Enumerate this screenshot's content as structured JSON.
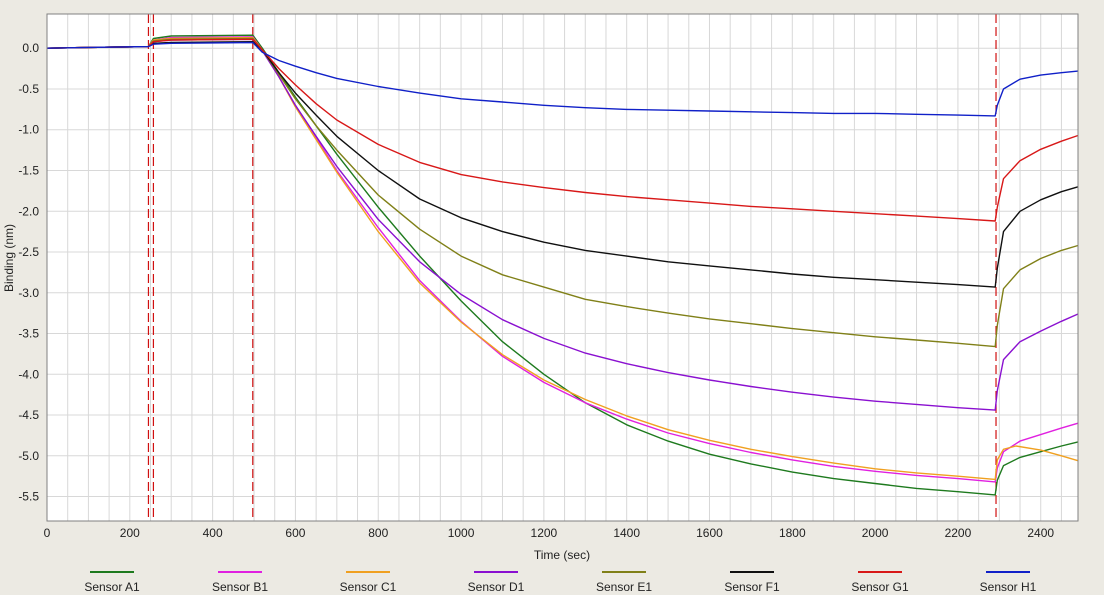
{
  "chart_data": {
    "type": "line",
    "title": "",
    "xlabel": "Time (sec)",
    "ylabel": "Binding (nm)",
    "xlim": [
      0,
      2490
    ],
    "ylim": [
      -5.8,
      0.42
    ],
    "x_ticks": [
      0,
      200,
      400,
      600,
      800,
      1000,
      1200,
      1400,
      1600,
      1800,
      2000,
      2200,
      2400
    ],
    "y_ticks": [
      0.0,
      -0.5,
      -1.0,
      -1.5,
      -2.0,
      -2.5,
      -3.0,
      -3.5,
      -4.0,
      -4.5,
      -5.0,
      -5.5
    ],
    "x_tick_labels": [
      "0",
      "200",
      "400",
      "600",
      "800",
      "1000",
      "1200",
      "1400",
      "1600",
      "1800",
      "2000",
      "2200",
      "2400"
    ],
    "y_tick_labels": [
      "0.0",
      "-0.5",
      "-1.0",
      "-1.5",
      "-2.0",
      "-2.5",
      "-3.0",
      "-3.5",
      "-4.0",
      "-4.5",
      "-5.0",
      "-5.5"
    ],
    "grid": true,
    "legend_position": "bottom",
    "step_markers": [
      245,
      257,
      497,
      2292
    ],
    "step_marker_color": "#D01010",
    "series": [
      {
        "name": "Sensor A1",
        "color": "#1E7A1E",
        "points": [
          [
            0,
            0
          ],
          [
            100,
            0.01
          ],
          [
            245,
            0.02
          ],
          [
            257,
            0.12
          ],
          [
            300,
            0.15
          ],
          [
            497,
            0.16
          ],
          [
            520,
            0.0
          ],
          [
            560,
            -0.3
          ],
          [
            600,
            -0.6
          ],
          [
            650,
            -0.95
          ],
          [
            700,
            -1.3
          ],
          [
            800,
            -1.95
          ],
          [
            900,
            -2.55
          ],
          [
            1000,
            -3.1
          ],
          [
            1100,
            -3.6
          ],
          [
            1200,
            -4.0
          ],
          [
            1300,
            -4.35
          ],
          [
            1400,
            -4.62
          ],
          [
            1500,
            -4.82
          ],
          [
            1600,
            -4.98
          ],
          [
            1700,
            -5.1
          ],
          [
            1800,
            -5.2
          ],
          [
            1900,
            -5.28
          ],
          [
            2000,
            -5.34
          ],
          [
            2100,
            -5.4
          ],
          [
            2200,
            -5.44
          ],
          [
            2290,
            -5.48
          ],
          [
            2295,
            -5.3
          ],
          [
            2310,
            -5.12
          ],
          [
            2350,
            -5.02
          ],
          [
            2400,
            -4.95
          ],
          [
            2450,
            -4.88
          ],
          [
            2490,
            -4.83
          ]
        ]
      },
      {
        "name": "Sensor B1",
        "color": "#E020E0",
        "points": [
          [
            0,
            0
          ],
          [
            100,
            0.01
          ],
          [
            245,
            0.02
          ],
          [
            257,
            0.1
          ],
          [
            300,
            0.13
          ],
          [
            497,
            0.14
          ],
          [
            520,
            -0.02
          ],
          [
            560,
            -0.35
          ],
          [
            600,
            -0.7
          ],
          [
            650,
            -1.1
          ],
          [
            700,
            -1.5
          ],
          [
            800,
            -2.2
          ],
          [
            900,
            -2.85
          ],
          [
            1000,
            -3.35
          ],
          [
            1100,
            -3.78
          ],
          [
            1200,
            -4.1
          ],
          [
            1300,
            -4.35
          ],
          [
            1400,
            -4.55
          ],
          [
            1500,
            -4.72
          ],
          [
            1600,
            -4.85
          ],
          [
            1700,
            -4.96
          ],
          [
            1800,
            -5.05
          ],
          [
            1900,
            -5.13
          ],
          [
            2000,
            -5.19
          ],
          [
            2100,
            -5.24
          ],
          [
            2200,
            -5.28
          ],
          [
            2290,
            -5.32
          ],
          [
            2295,
            -5.15
          ],
          [
            2310,
            -4.95
          ],
          [
            2350,
            -4.82
          ],
          [
            2400,
            -4.74
          ],
          [
            2450,
            -4.66
          ],
          [
            2490,
            -4.6
          ]
        ]
      },
      {
        "name": "Sensor C1",
        "color": "#F0A020",
        "points": [
          [
            0,
            0
          ],
          [
            100,
            0.01
          ],
          [
            245,
            0.02
          ],
          [
            257,
            0.1
          ],
          [
            300,
            0.12
          ],
          [
            497,
            0.13
          ],
          [
            520,
            -0.02
          ],
          [
            560,
            -0.35
          ],
          [
            600,
            -0.72
          ],
          [
            650,
            -1.12
          ],
          [
            700,
            -1.52
          ],
          [
            800,
            -2.25
          ],
          [
            900,
            -2.88
          ],
          [
            1000,
            -3.36
          ],
          [
            1100,
            -3.76
          ],
          [
            1200,
            -4.07
          ],
          [
            1300,
            -4.31
          ],
          [
            1400,
            -4.51
          ],
          [
            1500,
            -4.68
          ],
          [
            1600,
            -4.81
          ],
          [
            1700,
            -4.92
          ],
          [
            1800,
            -5.01
          ],
          [
            1900,
            -5.09
          ],
          [
            2000,
            -5.16
          ],
          [
            2100,
            -5.21
          ],
          [
            2200,
            -5.25
          ],
          [
            2290,
            -5.29
          ],
          [
            2295,
            -5.05
          ],
          [
            2310,
            -4.92
          ],
          [
            2340,
            -4.88
          ],
          [
            2400,
            -4.93
          ],
          [
            2450,
            -5.0
          ],
          [
            2490,
            -5.06
          ]
        ]
      },
      {
        "name": "Sensor D1",
        "color": "#8A10D0",
        "points": [
          [
            0,
            0
          ],
          [
            100,
            0.01
          ],
          [
            245,
            0.02
          ],
          [
            257,
            0.08
          ],
          [
            300,
            0.1
          ],
          [
            497,
            0.11
          ],
          [
            520,
            -0.03
          ],
          [
            560,
            -0.35
          ],
          [
            600,
            -0.7
          ],
          [
            650,
            -1.08
          ],
          [
            700,
            -1.45
          ],
          [
            800,
            -2.1
          ],
          [
            900,
            -2.62
          ],
          [
            1000,
            -3.02
          ],
          [
            1100,
            -3.33
          ],
          [
            1200,
            -3.56
          ],
          [
            1300,
            -3.74
          ],
          [
            1400,
            -3.87
          ],
          [
            1500,
            -3.98
          ],
          [
            1600,
            -4.07
          ],
          [
            1700,
            -4.15
          ],
          [
            1800,
            -4.22
          ],
          [
            1900,
            -4.28
          ],
          [
            2000,
            -4.33
          ],
          [
            2100,
            -4.37
          ],
          [
            2200,
            -4.41
          ],
          [
            2290,
            -4.44
          ],
          [
            2295,
            -4.2
          ],
          [
            2310,
            -3.82
          ],
          [
            2350,
            -3.6
          ],
          [
            2400,
            -3.47
          ],
          [
            2450,
            -3.35
          ],
          [
            2490,
            -3.26
          ]
        ]
      },
      {
        "name": "Sensor E1",
        "color": "#808018",
        "points": [
          [
            0,
            0
          ],
          [
            100,
            0.01
          ],
          [
            245,
            0.02
          ],
          [
            257,
            0.09
          ],
          [
            300,
            0.11
          ],
          [
            497,
            0.12
          ],
          [
            520,
            -0.02
          ],
          [
            560,
            -0.32
          ],
          [
            600,
            -0.62
          ],
          [
            650,
            -0.95
          ],
          [
            700,
            -1.25
          ],
          [
            800,
            -1.8
          ],
          [
            900,
            -2.22
          ],
          [
            1000,
            -2.55
          ],
          [
            1100,
            -2.78
          ],
          [
            1200,
            -2.93
          ],
          [
            1300,
            -3.08
          ],
          [
            1400,
            -3.17
          ],
          [
            1500,
            -3.25
          ],
          [
            1600,
            -3.32
          ],
          [
            1700,
            -3.38
          ],
          [
            1800,
            -3.44
          ],
          [
            1900,
            -3.49
          ],
          [
            2000,
            -3.54
          ],
          [
            2100,
            -3.58
          ],
          [
            2200,
            -3.62
          ],
          [
            2290,
            -3.66
          ],
          [
            2295,
            -3.4
          ],
          [
            2310,
            -2.95
          ],
          [
            2350,
            -2.72
          ],
          [
            2400,
            -2.58
          ],
          [
            2450,
            -2.48
          ],
          [
            2490,
            -2.42
          ]
        ]
      },
      {
        "name": "Sensor F1",
        "color": "#101010",
        "points": [
          [
            0,
            0
          ],
          [
            100,
            0.01
          ],
          [
            245,
            0.02
          ],
          [
            257,
            0.06
          ],
          [
            300,
            0.07
          ],
          [
            497,
            0.08
          ],
          [
            520,
            -0.02
          ],
          [
            560,
            -0.3
          ],
          [
            600,
            -0.55
          ],
          [
            650,
            -0.82
          ],
          [
            700,
            -1.08
          ],
          [
            800,
            -1.5
          ],
          [
            900,
            -1.85
          ],
          [
            1000,
            -2.08
          ],
          [
            1100,
            -2.25
          ],
          [
            1200,
            -2.38
          ],
          [
            1300,
            -2.48
          ],
          [
            1400,
            -2.55
          ],
          [
            1500,
            -2.62
          ],
          [
            1600,
            -2.67
          ],
          [
            1700,
            -2.72
          ],
          [
            1800,
            -2.77
          ],
          [
            1900,
            -2.81
          ],
          [
            2000,
            -2.84
          ],
          [
            2100,
            -2.87
          ],
          [
            2200,
            -2.9
          ],
          [
            2290,
            -2.93
          ],
          [
            2295,
            -2.7
          ],
          [
            2310,
            -2.25
          ],
          [
            2350,
            -2.0
          ],
          [
            2400,
            -1.86
          ],
          [
            2450,
            -1.76
          ],
          [
            2490,
            -1.7
          ]
        ]
      },
      {
        "name": "Sensor G1",
        "color": "#D81818",
        "points": [
          [
            0,
            0
          ],
          [
            100,
            0.01
          ],
          [
            245,
            0.02
          ],
          [
            257,
            0.08
          ],
          [
            300,
            0.1
          ],
          [
            497,
            0.11
          ],
          [
            520,
            -0.02
          ],
          [
            560,
            -0.25
          ],
          [
            600,
            -0.45
          ],
          [
            650,
            -0.68
          ],
          [
            700,
            -0.88
          ],
          [
            800,
            -1.18
          ],
          [
            900,
            -1.4
          ],
          [
            1000,
            -1.55
          ],
          [
            1100,
            -1.64
          ],
          [
            1200,
            -1.71
          ],
          [
            1300,
            -1.77
          ],
          [
            1400,
            -1.82
          ],
          [
            1500,
            -1.86
          ],
          [
            1600,
            -1.9
          ],
          [
            1700,
            -1.94
          ],
          [
            1800,
            -1.97
          ],
          [
            1900,
            -2.0
          ],
          [
            2000,
            -2.03
          ],
          [
            2100,
            -2.06
          ],
          [
            2200,
            -2.09
          ],
          [
            2290,
            -2.12
          ],
          [
            2295,
            -1.95
          ],
          [
            2310,
            -1.6
          ],
          [
            2350,
            -1.38
          ],
          [
            2400,
            -1.24
          ],
          [
            2450,
            -1.14
          ],
          [
            2490,
            -1.07
          ]
        ]
      },
      {
        "name": "Sensor H1",
        "color": "#1020C8",
        "points": [
          [
            0,
            0
          ],
          [
            100,
            0.01
          ],
          [
            245,
            0.02
          ],
          [
            257,
            0.05
          ],
          [
            300,
            0.06
          ],
          [
            497,
            0.07
          ],
          [
            520,
            -0.05
          ],
          [
            560,
            -0.15
          ],
          [
            600,
            -0.22
          ],
          [
            650,
            -0.3
          ],
          [
            700,
            -0.37
          ],
          [
            800,
            -0.47
          ],
          [
            900,
            -0.55
          ],
          [
            1000,
            -0.62
          ],
          [
            1100,
            -0.66
          ],
          [
            1200,
            -0.7
          ],
          [
            1300,
            -0.73
          ],
          [
            1400,
            -0.75
          ],
          [
            1500,
            -0.76
          ],
          [
            1600,
            -0.77
          ],
          [
            1700,
            -0.78
          ],
          [
            1800,
            -0.79
          ],
          [
            1900,
            -0.8
          ],
          [
            2000,
            -0.8
          ],
          [
            2100,
            -0.81
          ],
          [
            2200,
            -0.82
          ],
          [
            2290,
            -0.83
          ],
          [
            2295,
            -0.7
          ],
          [
            2310,
            -0.5
          ],
          [
            2350,
            -0.38
          ],
          [
            2400,
            -0.33
          ],
          [
            2450,
            -0.3
          ],
          [
            2490,
            -0.28
          ]
        ]
      }
    ]
  }
}
